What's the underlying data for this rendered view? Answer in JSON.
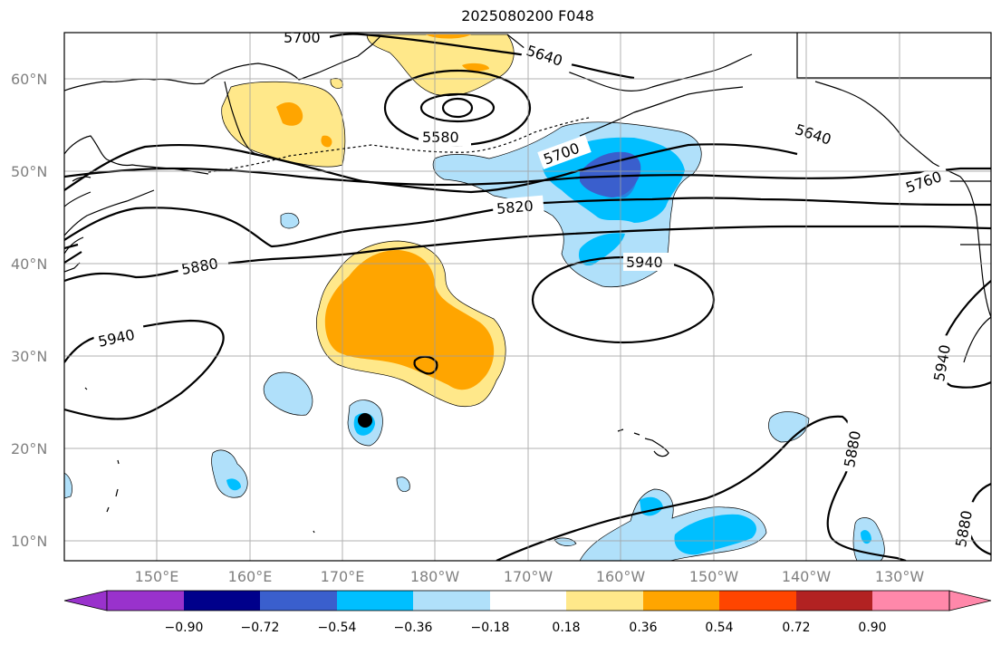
{
  "title": "2025080200 F048",
  "latitude_labels": [
    "60°N",
    "50°N",
    "40°N",
    "30°N",
    "20°N",
    "10°N"
  ],
  "longitude_labels": [
    "150°E",
    "160°E",
    "170°E",
    "180°W",
    "170°W",
    "160°W",
    "150°W",
    "140°W",
    "130°W"
  ],
  "contour_labels": [
    "5700",
    "5640",
    "5580",
    "5700",
    "5640",
    "5760",
    "5820",
    "5880",
    "5940",
    "5940",
    "5940",
    "5880",
    "5880"
  ],
  "colorbar": {
    "ticks": [
      "−0.90",
      "−0.72",
      "−0.54",
      "−0.36",
      "−0.18",
      "0.18",
      "0.36",
      "0.54",
      "0.72",
      "0.90"
    ],
    "colors": [
      "#9932cc",
      "#00008b",
      "#3a5fcd",
      "#00bfff",
      "#b0e0fa",
      "#ffffff",
      "#ffe88a",
      "#ffa500",
      "#ff4500",
      "#b22222",
      "#ff88aa"
    ]
  },
  "colors": {
    "pos_low": "#ffe88a",
    "pos_mid": "#ffa500",
    "neg_low": "#b0e0fa",
    "neg_mid": "#00bfff",
    "neg_high": "#3a5fcd",
    "contour": "#000000",
    "grid": "#a0a0a0",
    "axis_label": "#808080"
  }
}
